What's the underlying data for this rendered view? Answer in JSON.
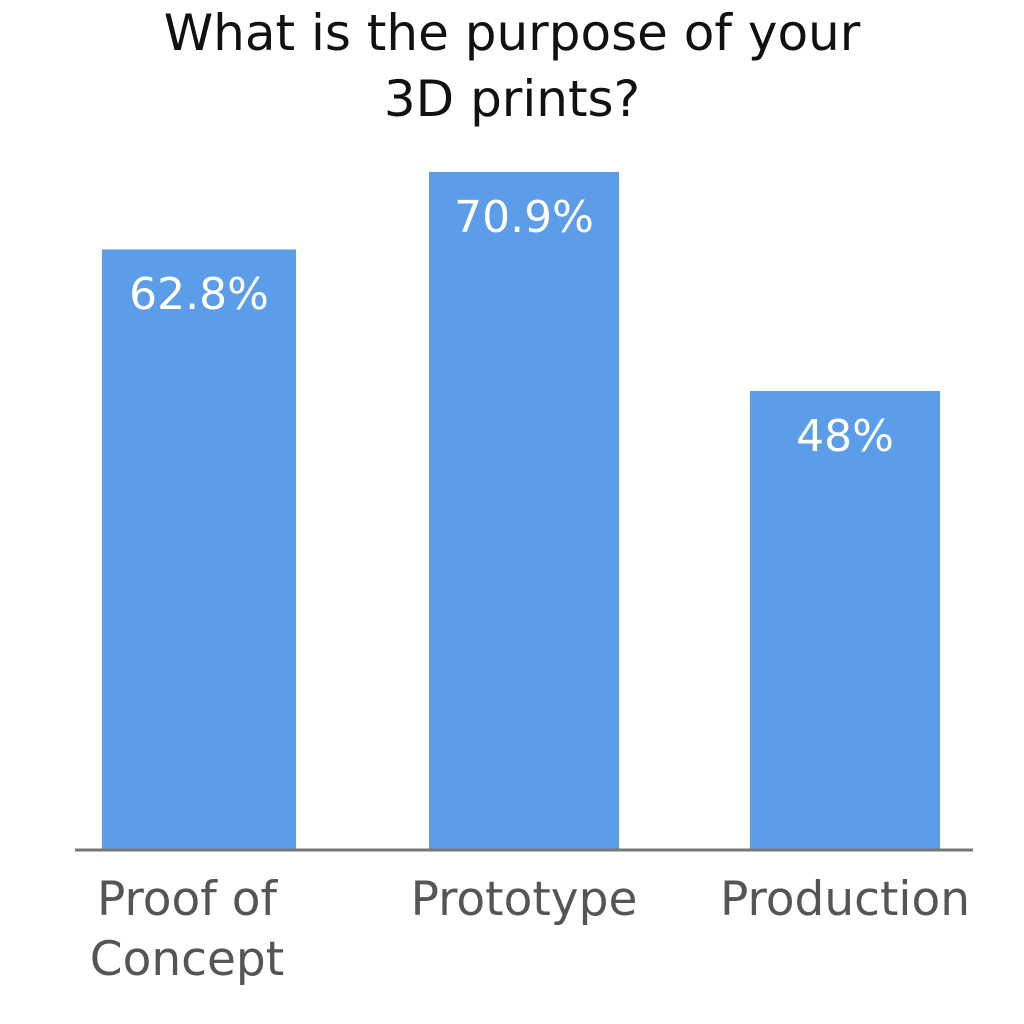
{
  "chart_data": {
    "type": "bar",
    "title": "What is the purpose of your 3D prints?",
    "categories": [
      "Proof of Concept",
      "Prototype",
      "Production"
    ],
    "values": [
      62.8,
      70.9,
      48
    ],
    "value_labels": [
      "62.8%",
      "70.9%",
      "48%"
    ],
    "color": "#5b9de8"
  }
}
